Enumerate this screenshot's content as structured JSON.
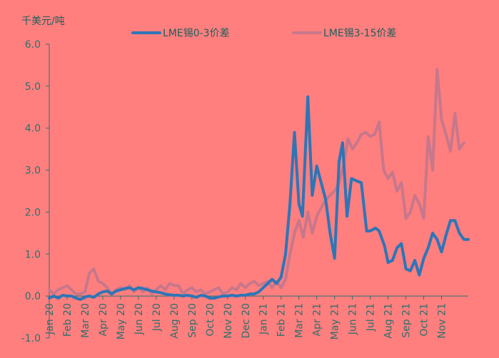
{
  "chart_data": {
    "type": "line",
    "unit_label": "千美元/吨",
    "ylim": [
      -1.0,
      6.0
    ],
    "y_ticks": [
      "-1.0",
      "0.0",
      "1.0",
      "2.0",
      "3.0",
      "4.0",
      "5.0",
      "6.0"
    ],
    "x_tick_labels": [
      "Jan 20",
      "Feb 20",
      "Mar 20",
      "Apr 20",
      "May 20",
      "Jun 20",
      "Jul 20",
      "Aug 20",
      "Sep 20",
      "Oct 20",
      "Nov 20",
      "Dec 20",
      "Jan 21",
      "Feb 21",
      "Mar 21",
      "Apr 21",
      "May 21",
      "Jun 21",
      "Jul 21",
      "Aug 21",
      "Sep 21",
      "Oct 21",
      "Nov 21"
    ],
    "x_range": [
      0,
      22.5
    ],
    "legend_position": "top",
    "grid": false,
    "series": [
      {
        "name": "LME锡0-3价差",
        "color": "#2E75B6",
        "points": [
          [
            0.0,
            -0.05
          ],
          [
            0.25,
            0.0
          ],
          [
            0.5,
            -0.05
          ],
          [
            0.75,
            0.02
          ],
          [
            1.0,
            0.0
          ],
          [
            1.25,
            0.0
          ],
          [
            1.5,
            -0.05
          ],
          [
            1.75,
            -0.08
          ],
          [
            2.0,
            -0.02
          ],
          [
            2.25,
            0.0
          ],
          [
            2.5,
            -0.03
          ],
          [
            2.75,
            0.05
          ],
          [
            3.0,
            0.1
          ],
          [
            3.25,
            0.12
          ],
          [
            3.5,
            0.05
          ],
          [
            3.75,
            0.12
          ],
          [
            4.0,
            0.15
          ],
          [
            4.25,
            0.18
          ],
          [
            4.5,
            0.2
          ],
          [
            4.75,
            0.15
          ],
          [
            5.0,
            0.2
          ],
          [
            5.25,
            0.18
          ],
          [
            5.5,
            0.15
          ],
          [
            5.75,
            0.12
          ],
          [
            6.0,
            0.1
          ],
          [
            6.25,
            0.08
          ],
          [
            6.5,
            0.05
          ],
          [
            6.75,
            0.03
          ],
          [
            7.0,
            0.02
          ],
          [
            7.25,
            0.02
          ],
          [
            7.5,
            0.0
          ],
          [
            7.75,
            0.02
          ],
          [
            8.0,
            0.0
          ],
          [
            8.25,
            -0.03
          ],
          [
            8.5,
            0.02
          ],
          [
            8.75,
            0.0
          ],
          [
            9.0,
            -0.05
          ],
          [
            9.25,
            -0.05
          ],
          [
            9.5,
            -0.02
          ],
          [
            9.75,
            0.0
          ],
          [
            10.0,
            0.0
          ],
          [
            10.25,
            0.02
          ],
          [
            10.5,
            0.0
          ],
          [
            10.75,
            0.02
          ],
          [
            11.0,
            0.02
          ],
          [
            11.25,
            0.05
          ],
          [
            11.5,
            0.05
          ],
          [
            11.75,
            0.1
          ],
          [
            12.0,
            0.2
          ],
          [
            12.25,
            0.3
          ],
          [
            12.5,
            0.4
          ],
          [
            12.75,
            0.3
          ],
          [
            13.0,
            0.45
          ],
          [
            13.25,
            1.0
          ],
          [
            13.5,
            2.2
          ],
          [
            13.75,
            3.9
          ],
          [
            14.0,
            2.2
          ],
          [
            14.2,
            1.9
          ],
          [
            14.5,
            4.75
          ],
          [
            14.75,
            2.4
          ],
          [
            15.0,
            3.1
          ],
          [
            15.25,
            2.7
          ],
          [
            15.5,
            2.3
          ],
          [
            15.75,
            1.5
          ],
          [
            16.0,
            0.9
          ],
          [
            16.25,
            3.2
          ],
          [
            16.45,
            3.65
          ],
          [
            16.7,
            1.9
          ],
          [
            16.95,
            2.8
          ],
          [
            17.2,
            2.75
          ],
          [
            17.5,
            2.7
          ],
          [
            17.8,
            1.55
          ],
          [
            18.0,
            1.55
          ],
          [
            18.3,
            1.62
          ],
          [
            18.5,
            1.55
          ],
          [
            18.8,
            1.2
          ],
          [
            19.0,
            0.8
          ],
          [
            19.25,
            0.85
          ],
          [
            19.5,
            1.15
          ],
          [
            19.75,
            1.25
          ],
          [
            20.0,
            0.65
          ],
          [
            20.25,
            0.6
          ],
          [
            20.5,
            0.85
          ],
          [
            20.75,
            0.5
          ],
          [
            21.0,
            0.9
          ],
          [
            21.25,
            1.15
          ],
          [
            21.5,
            1.5
          ],
          [
            21.75,
            1.35
          ],
          [
            22.0,
            1.05
          ],
          [
            22.25,
            1.45
          ],
          [
            22.5,
            1.8
          ],
          [
            22.75,
            1.8
          ],
          [
            23.0,
            1.5
          ],
          [
            23.25,
            1.35
          ],
          [
            23.5,
            1.35
          ]
        ]
      },
      {
        "name": "LME锡3-15价差",
        "color": "#C8778A",
        "points": [
          [
            0.0,
            0.15
          ],
          [
            0.25,
            0.05
          ],
          [
            0.5,
            0.15
          ],
          [
            0.75,
            0.2
          ],
          [
            1.0,
            0.25
          ],
          [
            1.25,
            0.15
          ],
          [
            1.5,
            0.05
          ],
          [
            1.75,
            0.05
          ],
          [
            2.0,
            0.1
          ],
          [
            2.25,
            0.55
          ],
          [
            2.5,
            0.65
          ],
          [
            2.75,
            0.35
          ],
          [
            3.0,
            0.3
          ],
          [
            3.25,
            0.2
          ],
          [
            3.5,
            0.05
          ],
          [
            3.75,
            0.15
          ],
          [
            4.0,
            0.2
          ],
          [
            4.25,
            0.15
          ],
          [
            4.5,
            0.25
          ],
          [
            4.75,
            0.1
          ],
          [
            5.0,
            0.2
          ],
          [
            5.25,
            0.1
          ],
          [
            5.5,
            0.2
          ],
          [
            5.75,
            0.05
          ],
          [
            6.0,
            0.15
          ],
          [
            6.25,
            0.25
          ],
          [
            6.5,
            0.15
          ],
          [
            6.75,
            0.3
          ],
          [
            7.0,
            0.25
          ],
          [
            7.25,
            0.25
          ],
          [
            7.5,
            0.05
          ],
          [
            7.75,
            0.15
          ],
          [
            8.0,
            0.2
          ],
          [
            8.25,
            0.1
          ],
          [
            8.5,
            0.15
          ],
          [
            8.75,
            0.05
          ],
          [
            9.0,
            0.1
          ],
          [
            9.25,
            0.15
          ],
          [
            9.5,
            0.2
          ],
          [
            9.75,
            0.05
          ],
          [
            10.0,
            0.1
          ],
          [
            10.25,
            0.2
          ],
          [
            10.5,
            0.15
          ],
          [
            10.75,
            0.3
          ],
          [
            11.0,
            0.2
          ],
          [
            11.25,
            0.3
          ],
          [
            11.5,
            0.35
          ],
          [
            11.75,
            0.25
          ],
          [
            12.0,
            0.3
          ],
          [
            12.25,
            0.35
          ],
          [
            12.5,
            0.2
          ],
          [
            12.75,
            0.35
          ],
          [
            13.0,
            0.2
          ],
          [
            13.25,
            0.4
          ],
          [
            13.5,
            1.0
          ],
          [
            13.75,
            1.5
          ],
          [
            14.0,
            1.8
          ],
          [
            14.25,
            1.4
          ],
          [
            14.5,
            2.0
          ],
          [
            14.75,
            1.5
          ],
          [
            15.0,
            1.9
          ],
          [
            15.25,
            2.1
          ],
          [
            15.5,
            2.3
          ],
          [
            15.75,
            2.4
          ],
          [
            16.0,
            2.5
          ],
          [
            16.25,
            2.7
          ],
          [
            16.5,
            3.1
          ],
          [
            16.75,
            3.75
          ],
          [
            17.0,
            3.5
          ],
          [
            17.25,
            3.65
          ],
          [
            17.5,
            3.85
          ],
          [
            17.75,
            3.9
          ],
          [
            18.0,
            3.8
          ],
          [
            18.25,
            3.85
          ],
          [
            18.5,
            4.15
          ],
          [
            18.75,
            3.0
          ],
          [
            19.0,
            2.8
          ],
          [
            19.25,
            2.95
          ],
          [
            19.5,
            2.5
          ],
          [
            19.75,
            2.7
          ],
          [
            20.0,
            1.85
          ],
          [
            20.25,
            2.0
          ],
          [
            20.5,
            2.4
          ],
          [
            20.75,
            2.2
          ],
          [
            21.0,
            1.85
          ],
          [
            21.25,
            3.8
          ],
          [
            21.5,
            3.0
          ],
          [
            21.75,
            5.4
          ],
          [
            22.0,
            4.2
          ],
          [
            22.25,
            3.85
          ],
          [
            22.5,
            3.45
          ],
          [
            22.75,
            4.35
          ],
          [
            23.0,
            3.5
          ],
          [
            23.25,
            3.65
          ]
        ]
      }
    ]
  }
}
